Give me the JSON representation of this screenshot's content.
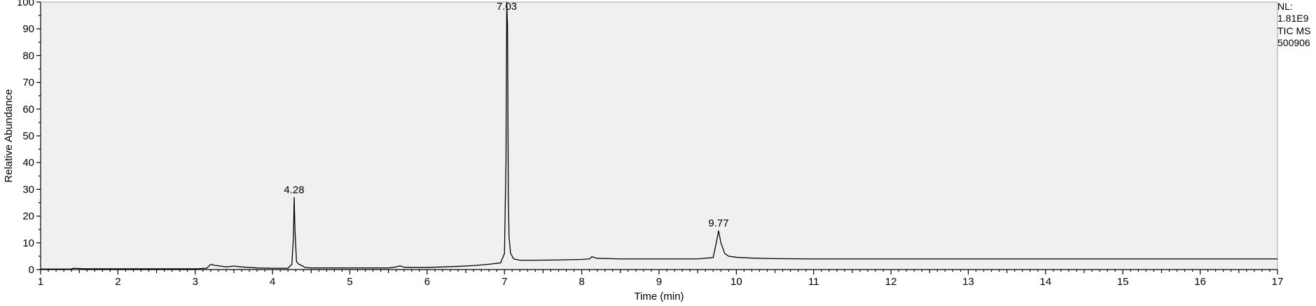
{
  "chart_data": {
    "type": "line",
    "xlabel": "Time (min)",
    "ylabel": "Relative Abundance",
    "xlim": [
      1,
      17
    ],
    "ylim": [
      0,
      100
    ],
    "x_ticks": [
      1,
      2,
      3,
      4,
      5,
      6,
      7,
      8,
      9,
      10,
      11,
      12,
      13,
      14,
      15,
      16,
      17
    ],
    "y_ticks": [
      0,
      10,
      20,
      30,
      40,
      50,
      60,
      70,
      80,
      90,
      100
    ],
    "grid": false,
    "background_color": "#f0f0f0",
    "line_color": "#000000",
    "peak_labels": [
      {
        "x": 4.28,
        "y": 27,
        "text": "4.28"
      },
      {
        "x": 7.03,
        "y": 100,
        "text": "7.03"
      },
      {
        "x": 9.77,
        "y": 14.5,
        "text": "9.77"
      }
    ],
    "series": [
      {
        "x": [
          1.0,
          1.4,
          1.42,
          1.6,
          2.0,
          2.5,
          3.0,
          3.15,
          3.2,
          3.25,
          3.3,
          3.4,
          3.5,
          3.6,
          3.8,
          4.0,
          4.2,
          4.25,
          4.27,
          4.28,
          4.29,
          4.31,
          4.34,
          4.38,
          4.42,
          4.5,
          4.8,
          5.2,
          5.5,
          5.6,
          5.65,
          5.7,
          5.8,
          6.0,
          6.2,
          6.4,
          6.6,
          6.8,
          6.95,
          7.0,
          7.02,
          7.03,
          7.04,
          7.05,
          7.06,
          7.08,
          7.12,
          7.2,
          7.4,
          7.7,
          8.0,
          8.1,
          8.13,
          8.2,
          8.5,
          9.0,
          9.5,
          9.7,
          9.74,
          9.77,
          9.8,
          9.85,
          9.9,
          10.0,
          10.2,
          10.5,
          11.0,
          12.0,
          14.0,
          17.0
        ],
        "y": [
          0.2,
          0.2,
          0.5,
          0.3,
          0.3,
          0.3,
          0.3,
          0.5,
          2.0,
          1.6,
          1.4,
          1.0,
          1.3,
          1.0,
          0.6,
          0.5,
          0.5,
          2.0,
          12.0,
          27.0,
          15.0,
          3.0,
          2.0,
          1.5,
          0.8,
          0.6,
          0.6,
          0.6,
          0.6,
          1.0,
          1.4,
          0.9,
          0.8,
          0.8,
          1.0,
          1.2,
          1.5,
          2.0,
          2.5,
          6.0,
          40.0,
          100.0,
          91.0,
          27.0,
          12.0,
          6.0,
          4.0,
          3.5,
          3.5,
          3.6,
          3.8,
          4.0,
          4.8,
          4.2,
          4.0,
          4.0,
          4.0,
          4.5,
          10.0,
          14.5,
          10.0,
          6.0,
          5.0,
          4.6,
          4.3,
          4.1,
          4.0,
          4.0,
          4.0,
          4.0
        ]
      }
    ]
  },
  "info_box": {
    "line1": "NL:",
    "line2": "1.81E9",
    "line3": "TIC  MS",
    "line4": "500906"
  }
}
